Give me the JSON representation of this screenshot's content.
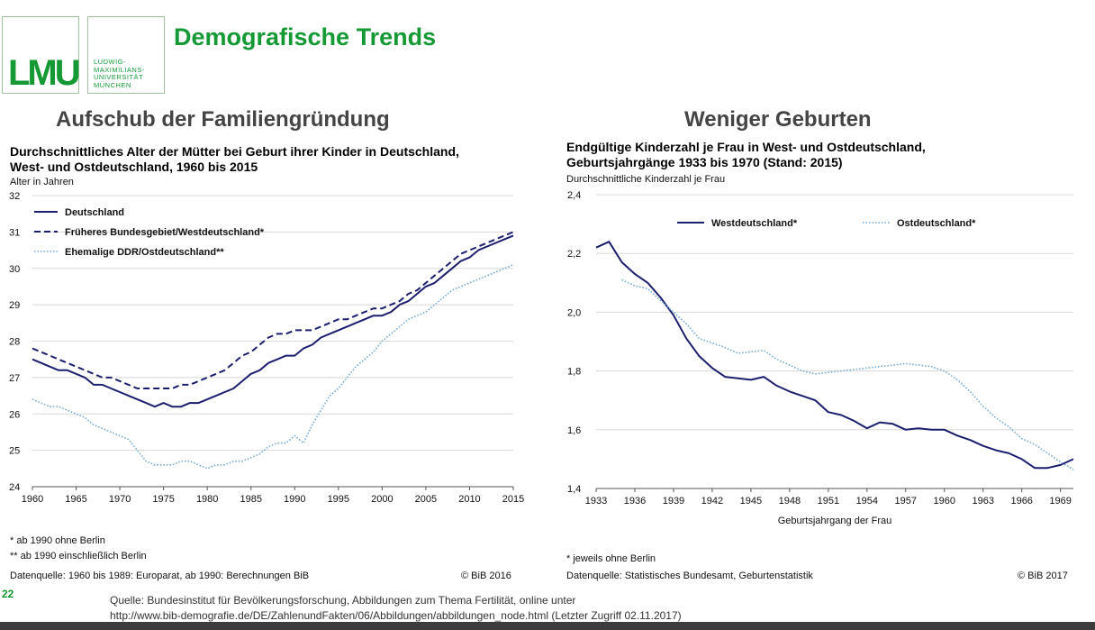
{
  "header": {
    "title": "Demografische Trends",
    "logo_text": "LMU",
    "logo_lines": [
      "LUDWIG-",
      "MAXIMILIANS-",
      "UNIVERSITÄT",
      "MÜNCHEN"
    ]
  },
  "left_panel": {
    "subtitle": "Aufschub der Familiengründung",
    "title_line1": "Durchschnittliches Alter der Mütter bei Geburt ihrer Kinder in Deutschland,",
    "title_line2": "West- und Ostdeutschland, 1960 bis 2015",
    "ylabel": "Alter in Jahren",
    "footnote1": "* ab 1990 ohne Berlin",
    "footnote2": "** ab 1990 einschließlich Berlin",
    "datasource": "Datenquelle: 1960 bis 1989: Europarat, ab 1990: Berechnungen BiB",
    "copyright": "© BiB 2016"
  },
  "right_panel": {
    "subtitle": "Weniger Geburten",
    "title_line1": "Endgültige Kinderzahl je Frau in West- und Ostdeutschland,",
    "title_line2": "Geburtsjahrgänge 1933 bis 1970 (Stand: 2015)",
    "ylabel": "Durchschnittliche Kinderzahl je Frau",
    "footnote1": "* jeweils ohne Berlin",
    "datasource": "Datenquelle: Statistisches Bundesamt, Geburtenstatistik",
    "copyright": "© BiB 2017"
  },
  "footer": {
    "slide_number": "22",
    "source_line1": "Quelle:  Bundesinstitut für Bevölkerungsforschung, Abbildungen zum Thema Fertilität, online unter",
    "source_line2": "http://www.bib-demografie.de/DE/ZahlenundFakten/06/Abbildungen/abbildungen_node.html (Letzter Zugriff 02.11.2017)"
  },
  "colors": {
    "navy": "#1c1f6e",
    "dotted": "#6fa8d6",
    "green": "#159934",
    "grid": "#d8d8d8"
  },
  "chart_data": [
    {
      "type": "line",
      "title": "Durchschnittliches Alter der Mütter bei Geburt ihrer Kinder in Deutschland, West- und Ostdeutschland, 1960 bis 2015",
      "xlabel": "",
      "ylabel": "Alter in Jahren",
      "xlim": [
        1960,
        2015
      ],
      "ylim": [
        24,
        32
      ],
      "xticks": [
        1960,
        1965,
        1970,
        1975,
        1980,
        1985,
        1990,
        1995,
        2000,
        2005,
        2010,
        2015
      ],
      "yticks": [
        24,
        25,
        26,
        27,
        28,
        29,
        30,
        31,
        32
      ],
      "legend_position": "top-left",
      "series": [
        {
          "name": "Deutschland",
          "style": "solid",
          "x": [
            1960,
            1961,
            1962,
            1963,
            1964,
            1965,
            1966,
            1967,
            1968,
            1969,
            1970,
            1971,
            1972,
            1973,
            1974,
            1975,
            1976,
            1977,
            1978,
            1979,
            1980,
            1981,
            1982,
            1983,
            1984,
            1985,
            1986,
            1987,
            1988,
            1989,
            1990,
            1991,
            1992,
            1993,
            1994,
            1995,
            1996,
            1997,
            1998,
            1999,
            2000,
            2001,
            2002,
            2003,
            2004,
            2005,
            2006,
            2007,
            2008,
            2009,
            2010,
            2011,
            2012,
            2013,
            2014,
            2015
          ],
          "values": [
            27.5,
            27.4,
            27.3,
            27.2,
            27.2,
            27.1,
            27.0,
            26.8,
            26.8,
            26.7,
            26.6,
            26.5,
            26.4,
            26.3,
            26.2,
            26.3,
            26.2,
            26.2,
            26.3,
            26.3,
            26.4,
            26.5,
            26.6,
            26.7,
            26.9,
            27.1,
            27.2,
            27.4,
            27.5,
            27.6,
            27.6,
            27.8,
            27.9,
            28.1,
            28.2,
            28.3,
            28.4,
            28.5,
            28.6,
            28.7,
            28.7,
            28.8,
            29.0,
            29.1,
            29.3,
            29.5,
            29.6,
            29.8,
            30.0,
            30.2,
            30.3,
            30.5,
            30.6,
            30.7,
            30.8,
            30.9
          ]
        },
        {
          "name": "Früheres Bundesgebiet/Westdeutschland*",
          "style": "dashed",
          "x": [
            1960,
            1961,
            1962,
            1963,
            1964,
            1965,
            1966,
            1967,
            1968,
            1969,
            1970,
            1971,
            1972,
            1973,
            1974,
            1975,
            1976,
            1977,
            1978,
            1979,
            1980,
            1981,
            1982,
            1983,
            1984,
            1985,
            1986,
            1987,
            1988,
            1989,
            1990,
            1991,
            1992,
            1993,
            1994,
            1995,
            1996,
            1997,
            1998,
            1999,
            2000,
            2001,
            2002,
            2003,
            2004,
            2005,
            2006,
            2007,
            2008,
            2009,
            2010,
            2011,
            2012,
            2013,
            2014,
            2015
          ],
          "values": [
            27.8,
            27.7,
            27.6,
            27.5,
            27.4,
            27.3,
            27.2,
            27.1,
            27.0,
            27.0,
            26.9,
            26.8,
            26.7,
            26.7,
            26.7,
            26.7,
            26.7,
            26.8,
            26.8,
            26.9,
            27.0,
            27.1,
            27.2,
            27.4,
            27.6,
            27.7,
            27.9,
            28.1,
            28.2,
            28.2,
            28.3,
            28.3,
            28.3,
            28.4,
            28.5,
            28.6,
            28.6,
            28.7,
            28.8,
            28.9,
            28.9,
            29.0,
            29.1,
            29.3,
            29.4,
            29.6,
            29.8,
            30.0,
            30.2,
            30.4,
            30.5,
            30.6,
            30.7,
            30.8,
            30.9,
            31.0
          ]
        },
        {
          "name": "Ehemalige DDR/Ostdeutschland**",
          "style": "dotted",
          "x": [
            1960,
            1961,
            1962,
            1963,
            1964,
            1965,
            1966,
            1967,
            1968,
            1969,
            1970,
            1971,
            1972,
            1973,
            1974,
            1975,
            1976,
            1977,
            1978,
            1979,
            1980,
            1981,
            1982,
            1983,
            1984,
            1985,
            1986,
            1987,
            1988,
            1989,
            1990,
            1991,
            1992,
            1993,
            1994,
            1995,
            1996,
            1997,
            1998,
            1999,
            2000,
            2001,
            2002,
            2003,
            2004,
            2005,
            2006,
            2007,
            2008,
            2009,
            2010,
            2011,
            2012,
            2013,
            2014,
            2015
          ],
          "values": [
            26.4,
            26.3,
            26.2,
            26.2,
            26.1,
            26.0,
            25.9,
            25.7,
            25.6,
            25.5,
            25.4,
            25.3,
            25.0,
            24.7,
            24.6,
            24.6,
            24.6,
            24.7,
            24.7,
            24.6,
            24.5,
            24.6,
            24.6,
            24.7,
            24.7,
            24.8,
            24.9,
            25.1,
            25.2,
            25.2,
            25.4,
            25.2,
            25.7,
            26.1,
            26.5,
            26.7,
            27.0,
            27.3,
            27.5,
            27.7,
            28.0,
            28.2,
            28.4,
            28.6,
            28.7,
            28.8,
            29.0,
            29.2,
            29.4,
            29.5,
            29.6,
            29.7,
            29.8,
            29.9,
            30.0,
            30.1
          ]
        }
      ]
    },
    {
      "type": "line",
      "title": "Endgültige Kinderzahl je Frau in West- und Ostdeutschland, Geburtsjahrgänge 1933 bis 1970 (Stand: 2015)",
      "xlabel": "Geburtsjahrgang der Frau",
      "ylabel": "Durchschnittliche Kinderzahl je Frau",
      "xlim": [
        1933,
        1970
      ],
      "ylim": [
        1.4,
        2.4
      ],
      "xticks": [
        1933,
        1936,
        1939,
        1942,
        1945,
        1948,
        1951,
        1954,
        1957,
        1960,
        1963,
        1966,
        1969
      ],
      "yticks": [
        "1,4",
        "1,6",
        "1,8",
        "2,0",
        "2,2",
        "2,4"
      ],
      "legend_position": "top",
      "series": [
        {
          "name": "Westdeutschland*",
          "style": "solid",
          "x": [
            1933,
            1934,
            1935,
            1936,
            1937,
            1938,
            1939,
            1940,
            1941,
            1942,
            1943,
            1944,
            1945,
            1946,
            1947,
            1948,
            1949,
            1950,
            1951,
            1952,
            1953,
            1954,
            1955,
            1956,
            1957,
            1958,
            1959,
            1960,
            1961,
            1962,
            1963,
            1964,
            1965,
            1966,
            1967,
            1968,
            1969,
            1970
          ],
          "values": [
            2.22,
            2.24,
            2.17,
            2.13,
            2.1,
            2.05,
            1.99,
            1.91,
            1.85,
            1.81,
            1.78,
            1.775,
            1.77,
            1.78,
            1.75,
            1.73,
            1.715,
            1.7,
            1.66,
            1.65,
            1.63,
            1.605,
            1.625,
            1.62,
            1.6,
            1.605,
            1.6,
            1.6,
            1.58,
            1.565,
            1.545,
            1.53,
            1.52,
            1.5,
            1.47,
            1.47,
            1.48,
            1.5
          ]
        },
        {
          "name": "Ostdeutschland*",
          "style": "dotted",
          "x": [
            1935,
            1936,
            1937,
            1938,
            1939,
            1940,
            1941,
            1942,
            1943,
            1944,
            1945,
            1946,
            1947,
            1948,
            1949,
            1950,
            1951,
            1952,
            1953,
            1954,
            1955,
            1956,
            1957,
            1958,
            1959,
            1960,
            1961,
            1962,
            1963,
            1964,
            1965,
            1966,
            1967,
            1968,
            1969,
            1970
          ],
          "values": [
            2.11,
            2.09,
            2.08,
            2.04,
            2.0,
            1.96,
            1.91,
            1.895,
            1.88,
            1.86,
            1.865,
            1.87,
            1.84,
            1.82,
            1.8,
            1.79,
            1.795,
            1.8,
            1.805,
            1.81,
            1.815,
            1.82,
            1.825,
            1.82,
            1.815,
            1.8,
            1.77,
            1.73,
            1.68,
            1.64,
            1.61,
            1.57,
            1.55,
            1.52,
            1.49,
            1.465
          ]
        }
      ]
    }
  ]
}
